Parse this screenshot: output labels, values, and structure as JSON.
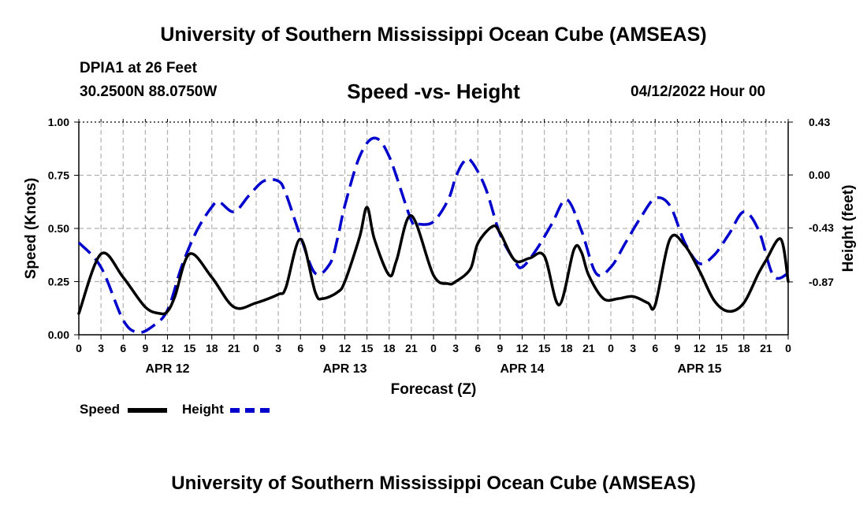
{
  "page": {
    "title": "University of Southern Mississippi Ocean Cube (AMSEAS)",
    "footer_title": "University of Southern Mississippi Ocean Cube (AMSEAS)",
    "station": "DPIA1 at 26 Feet",
    "coords": "30.2500N  88.0750W",
    "date": "04/12/2022 Hour 00"
  },
  "chart_data": {
    "type": "line",
    "title": "Speed -vs- Height",
    "xlabel": "Forecast (Z)",
    "ylabel": "Speed (Knots)",
    "y2label": "Height (feet)",
    "xlim": [
      0,
      96
    ],
    "ylim": [
      0,
      1
    ],
    "y2lim": [
      -1.3,
      0.43
    ],
    "grid": true,
    "x_tick_labels": [
      "0",
      "3",
      "6",
      "9",
      "12",
      "15",
      "18",
      "21",
      "0",
      "3",
      "6",
      "9",
      "12",
      "15",
      "18",
      "21",
      "0",
      "3",
      "6",
      "9",
      "12",
      "15",
      "18",
      "21",
      "0",
      "3",
      "6",
      "9",
      "12",
      "15",
      "18",
      "21",
      "0"
    ],
    "y_tick_labels": [
      "0.00",
      "0.25",
      "0.50",
      "0.75",
      "1.00"
    ],
    "y_tick_values": [
      0,
      0.25,
      0.5,
      0.75,
      1.0
    ],
    "y2_tick_labels": [
      "-0.87",
      "-0.43",
      "0.00",
      "0.43"
    ],
    "y2_tick_values": [
      -0.87,
      -0.43,
      0.0,
      0.43
    ],
    "date_labels": [
      {
        "text": "APR 12",
        "x": 12
      },
      {
        "text": "APR 13",
        "x": 36
      },
      {
        "text": "APR 14",
        "x": 60
      },
      {
        "text": "APR 15",
        "x": 84
      }
    ],
    "legend": [
      {
        "name": "Speed",
        "color": "#000000",
        "style": "solid"
      },
      {
        "name": "Height",
        "color": "#0000cc",
        "style": "dashed"
      }
    ],
    "series": [
      {
        "name": "Speed",
        "axis": "left",
        "color": "#000000",
        "style": "solid",
        "x": [
          0,
          3,
          6,
          9,
          11,
          12,
          13,
          15,
          18,
          21,
          24,
          27,
          28,
          30,
          32,
          33,
          35,
          36,
          38,
          39,
          40,
          42,
          43,
          45,
          48,
          50,
          51,
          53,
          54,
          56,
          57,
          59,
          61,
          63,
          65,
          67,
          68,
          69,
          71,
          73,
          75,
          77,
          78,
          80,
          82,
          84,
          86,
          88,
          90,
          92,
          93,
          95,
          96
        ],
        "values": [
          0.1,
          0.38,
          0.27,
          0.13,
          0.1,
          0.11,
          0.18,
          0.38,
          0.27,
          0.13,
          0.15,
          0.19,
          0.22,
          0.45,
          0.2,
          0.17,
          0.2,
          0.25,
          0.46,
          0.6,
          0.45,
          0.28,
          0.35,
          0.56,
          0.28,
          0.24,
          0.25,
          0.31,
          0.43,
          0.51,
          0.48,
          0.35,
          0.36,
          0.37,
          0.14,
          0.4,
          0.39,
          0.28,
          0.17,
          0.17,
          0.18,
          0.15,
          0.14,
          0.45,
          0.42,
          0.3,
          0.16,
          0.11,
          0.15,
          0.29,
          0.35,
          0.45,
          0.25
        ]
      },
      {
        "name": "Height",
        "axis": "right",
        "color": "#0000cc",
        "style": "dashed",
        "x": [
          0,
          3,
          6,
          8,
          10,
          12,
          14,
          16,
          18,
          19,
          21,
          23,
          25,
          27,
          28,
          30,
          32,
          34,
          35,
          36,
          38,
          40,
          42,
          45,
          46,
          48,
          50,
          51,
          52,
          53,
          55,
          57,
          59,
          60,
          62,
          64,
          66,
          68,
          70,
          72,
          74,
          76,
          78,
          80,
          82,
          84,
          86,
          88,
          90,
          92,
          94,
          96
        ],
        "values": [
          -0.55,
          -0.75,
          -1.18,
          -1.28,
          -1.23,
          -1.1,
          -0.73,
          -0.45,
          -0.26,
          -0.22,
          -0.3,
          -0.17,
          -0.05,
          -0.05,
          -0.15,
          -0.5,
          -0.8,
          -0.72,
          -0.52,
          -0.25,
          0.15,
          0.3,
          0.15,
          -0.37,
          -0.4,
          -0.38,
          -0.2,
          -0.02,
          0.1,
          0.12,
          -0.1,
          -0.48,
          -0.7,
          -0.75,
          -0.6,
          -0.4,
          -0.2,
          -0.45,
          -0.8,
          -0.75,
          -0.55,
          -0.35,
          -0.19,
          -0.25,
          -0.55,
          -0.72,
          -0.65,
          -0.48,
          -0.3,
          -0.45,
          -0.82,
          -0.8
        ]
      }
    ]
  }
}
